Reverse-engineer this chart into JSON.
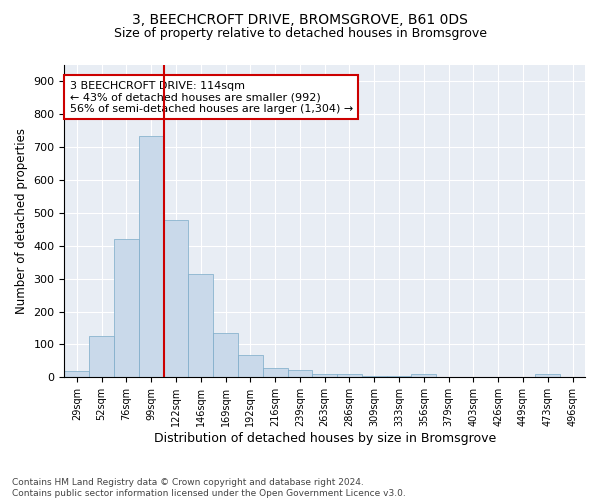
{
  "title1": "3, BEECHCROFT DRIVE, BROMSGROVE, B61 0DS",
  "title2": "Size of property relative to detached houses in Bromsgrove",
  "xlabel": "Distribution of detached houses by size in Bromsgrove",
  "ylabel": "Number of detached properties",
  "bar_color": "#c9d9ea",
  "bar_edge_color": "#7aaac8",
  "background_color": "#e8edf4",
  "grid_color": "#ffffff",
  "categories": [
    "29sqm",
    "52sqm",
    "76sqm",
    "99sqm",
    "122sqm",
    "146sqm",
    "169sqm",
    "192sqm",
    "216sqm",
    "239sqm",
    "263sqm",
    "286sqm",
    "309sqm",
    "333sqm",
    "356sqm",
    "379sqm",
    "403sqm",
    "426sqm",
    "449sqm",
    "473sqm",
    "496sqm"
  ],
  "values": [
    20,
    125,
    420,
    735,
    480,
    315,
    135,
    68,
    28,
    22,
    10,
    10,
    5,
    5,
    10,
    0,
    0,
    0,
    0,
    10,
    0
  ],
  "vline_position": 4.5,
  "annotation_text": "3 BEECHCROFT DRIVE: 114sqm\n← 43% of detached houses are smaller (992)\n56% of semi-detached houses are larger (1,304) →",
  "annotation_box_color": "#ffffff",
  "annotation_border_color": "#cc0000",
  "vline_color": "#cc0000",
  "footnote": "Contains HM Land Registry data © Crown copyright and database right 2024.\nContains public sector information licensed under the Open Government Licence v3.0.",
  "ylim": [
    0,
    950
  ],
  "yticks": [
    0,
    100,
    200,
    300,
    400,
    500,
    600,
    700,
    800,
    900
  ],
  "title1_fontsize": 10,
  "title2_fontsize": 9
}
